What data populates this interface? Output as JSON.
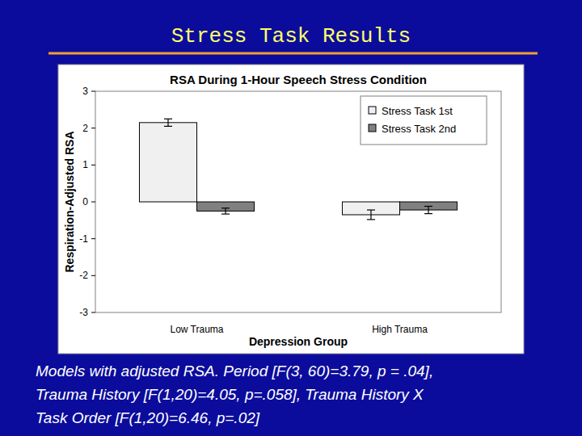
{
  "slide": {
    "title": "Stress Task Results",
    "caption": [
      "Models with adjusted RSA. Period [F(3, 60)=3.79, p = .04],",
      "Trauma History [F(1,20)=4.05, p=.058], Trauma History X",
      "Task Order [F(1,20)=6.46, p=.02]"
    ]
  },
  "chart_data": {
    "type": "bar",
    "title": "RSA During 1-Hour Speech Stress Condition",
    "x_label": "Depression Group",
    "y_label": "Respiration-Adjusted RSA",
    "categories": [
      "Low Trauma",
      "High Trauma"
    ],
    "series": [
      {
        "name": "Stress Task 1st",
        "color": "#f0f0f0",
        "values": [
          2.15,
          -0.35
        ],
        "errors": [
          0.1,
          0.13
        ]
      },
      {
        "name": "Stress Task 2nd",
        "color": "#808080",
        "values": [
          -0.25,
          -0.22
        ],
        "errors": [
          0.08,
          0.1
        ]
      }
    ],
    "ylim": [
      -3,
      3
    ],
    "yticks": [
      -3,
      -2,
      -1,
      0,
      1,
      2,
      3
    ],
    "grid": false,
    "legend": "top-right"
  }
}
